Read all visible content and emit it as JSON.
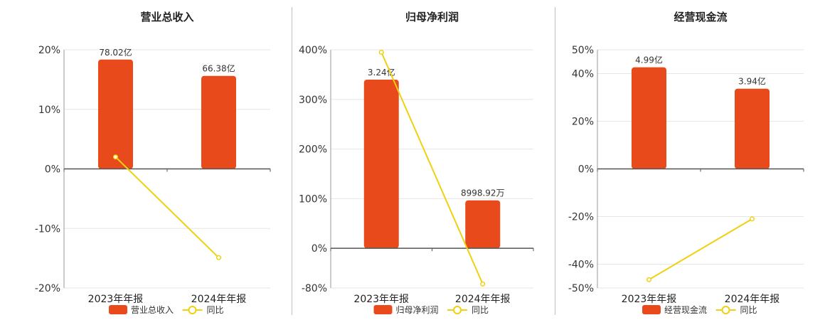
{
  "colors": {
    "bar": "#e84a1c",
    "line": "#f0d010",
    "grid": "#e6e6e6",
    "axis": "#555555",
    "text": "#333333"
  },
  "chart_data": [
    {
      "type": "bar",
      "title": "营业总收入",
      "categories": [
        "2023年年报",
        "2024年年报"
      ],
      "bar_series": {
        "name": "营业总收入",
        "labels": [
          "78.02亿",
          "66.38亿"
        ]
      },
      "line_series": {
        "name": "同比",
        "values": [
          2.0,
          -14.9
        ]
      },
      "ylim": [
        -20,
        20
      ],
      "yticks": [
        {
          "value": 20,
          "label": "20%"
        },
        {
          "value": 10,
          "label": "10%"
        },
        {
          "value": 0,
          "label": "0%"
        },
        {
          "value": -10,
          "label": "-10%"
        },
        {
          "value": -20,
          "label": "-20%"
        }
      ],
      "bar_ylim": [
        -85,
        85
      ],
      "bar_values": [
        78.02,
        66.38
      ],
      "grid": true,
      "legend": "bottom"
    },
    {
      "type": "bar",
      "title": "归母净利润",
      "categories": [
        "2023年年报",
        "2024年年报"
      ],
      "bar_series": {
        "name": "归母净利润",
        "labels": [
          "3.24亿",
          "8998.92万"
        ]
      },
      "line_series": {
        "name": "同比",
        "values": [
          395,
          -72
        ]
      },
      "ylim": [
        -80,
        400
      ],
      "yticks": [
        {
          "value": 400,
          "label": "400%"
        },
        {
          "value": 300,
          "label": "300%"
        },
        {
          "value": 200,
          "label": "200%"
        },
        {
          "value": 100,
          "label": "100%"
        },
        {
          "value": 0,
          "label": "0%"
        },
        {
          "value": -80,
          "label": "-80%"
        }
      ],
      "bar_ylim": [
        -0.8,
        3.82
      ],
      "bar_values": [
        3.24,
        0.899892
      ],
      "grid": true,
      "legend": "bottom"
    },
    {
      "type": "bar",
      "title": "经营现金流",
      "categories": [
        "2023年年报",
        "2024年年报"
      ],
      "bar_series": {
        "name": "经营现金流",
        "labels": [
          "4.99亿",
          "3.94亿"
        ]
      },
      "line_series": {
        "name": "同比",
        "values": [
          -46.5,
          -21.0
        ]
      },
      "ylim": [
        -50,
        50
      ],
      "yticks": [
        {
          "value": 50,
          "label": "50%"
        },
        {
          "value": 40,
          "label": "40%"
        },
        {
          "value": 20,
          "label": "20%"
        },
        {
          "value": 0,
          "label": "0%"
        },
        {
          "value": -20,
          "label": "-20%"
        },
        {
          "value": -40,
          "label": "-40%"
        },
        {
          "value": -50,
          "label": "-50%"
        }
      ],
      "bar_ylim": [
        -5.85,
        5.85
      ],
      "bar_values": [
        4.99,
        3.94
      ],
      "grid": true,
      "legend": "bottom"
    }
  ]
}
